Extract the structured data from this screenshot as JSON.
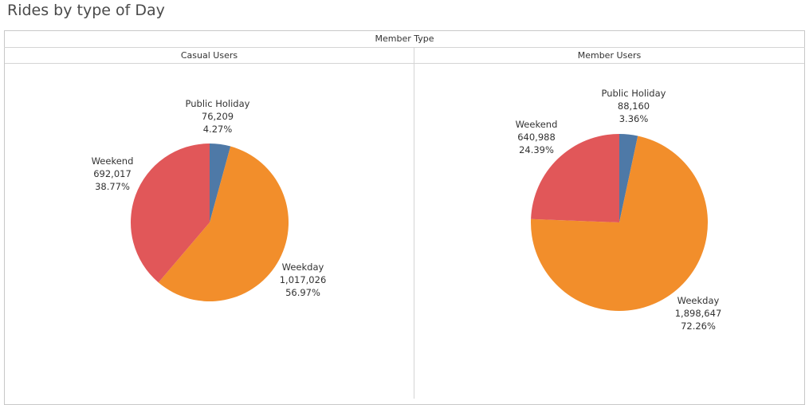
{
  "page": {
    "title": "Rides by type of Day"
  },
  "table": {
    "dimension_header": "Member Type",
    "columns": [
      "Casual Users",
      "Member Users"
    ]
  },
  "colors": {
    "Public Holiday": "#4e79a7",
    "Weekday": "#f28e2b",
    "Weekend": "#e15759"
  },
  "chart_data": [
    {
      "type": "pie",
      "name": "Casual Users",
      "slices": [
        {
          "label": "Public Holiday",
          "value": 76209,
          "value_text": "76,209",
          "percent_text": "4.27%"
        },
        {
          "label": "Weekday",
          "value": 1017026,
          "value_text": "1,017,026",
          "percent_text": "56.97%"
        },
        {
          "label": "Weekend",
          "value": 692017,
          "value_text": "692,017",
          "percent_text": "38.77%"
        }
      ]
    },
    {
      "type": "pie",
      "name": "Member Users",
      "slices": [
        {
          "label": "Public Holiday",
          "value": 88160,
          "value_text": "88,160",
          "percent_text": "3.36%"
        },
        {
          "label": "Weekday",
          "value": 1898647,
          "value_text": "1,898,647",
          "percent_text": "72.26%"
        },
        {
          "label": "Weekend",
          "value": 640988,
          "value_text": "640,988",
          "percent_text": "24.39%"
        }
      ]
    }
  ]
}
